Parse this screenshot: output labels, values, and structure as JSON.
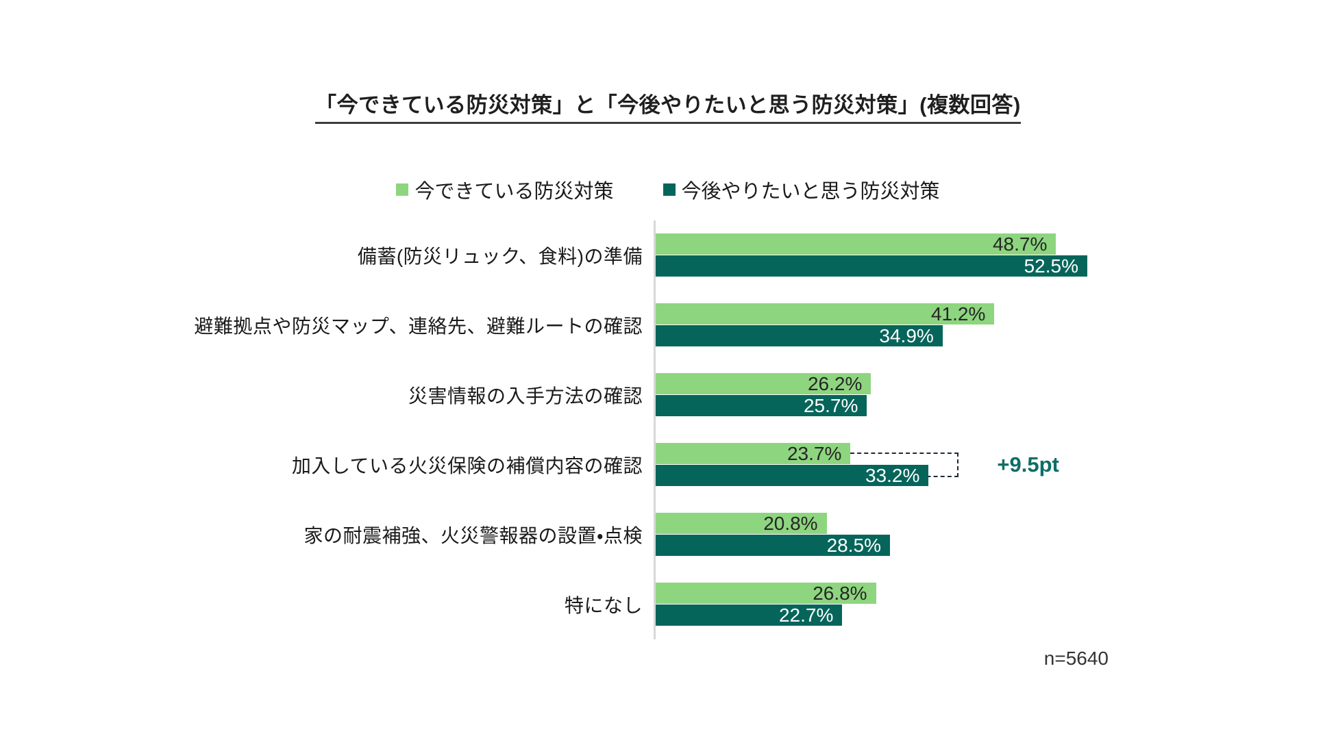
{
  "title": "「今できている防災対策」と「今後やりたいと思う防災対策」(複数回答)",
  "legend": [
    {
      "label": "今できている防災対策",
      "color": "#8ed57f"
    },
    {
      "label": "今後やりたいと思う防災対策",
      "color": "#06655a"
    }
  ],
  "annotation": {
    "text": "+9.5pt",
    "category_index": 3,
    "color": "#0d6e66"
  },
  "sample_note": "n=5640",
  "colors": {
    "current_bar": "#8ed57f",
    "future_bar": "#06655a",
    "current_value_text": "#262626",
    "future_value_text": "#ffffff",
    "axis_line": "#d8d8d8",
    "bracket": "#1e2836"
  },
  "chart_data": {
    "type": "bar",
    "orientation": "horizontal",
    "title": "「今できている防災対策」と「今後やりたいと思う防災対策」(複数回答)",
    "categories": [
      "備蓄(防災リュック、食料)の準備",
      "避難拠点や防災マップ、連絡先、避難ルートの確認",
      "災害情報の入手方法の確認",
      "加入している火災保険の補償内容の確認",
      "家の耐震補強、火災警報器の設置・点検",
      "特になし"
    ],
    "series": [
      {
        "name": "今できている防災対策",
        "values": [
          48.7,
          41.2,
          26.2,
          23.7,
          20.8,
          26.8
        ]
      },
      {
        "name": "今後やりたいと思う防災対策",
        "values": [
          52.5,
          34.9,
          25.7,
          33.2,
          28.5,
          22.7
        ]
      }
    ],
    "unit": "%",
    "xlim": [
      0,
      60
    ],
    "value_labels": true,
    "legend_position": "top",
    "grid": false,
    "annotations": [
      {
        "text": "+9.5pt",
        "category": "加入している火災保険の補償内容の確認"
      }
    ]
  }
}
